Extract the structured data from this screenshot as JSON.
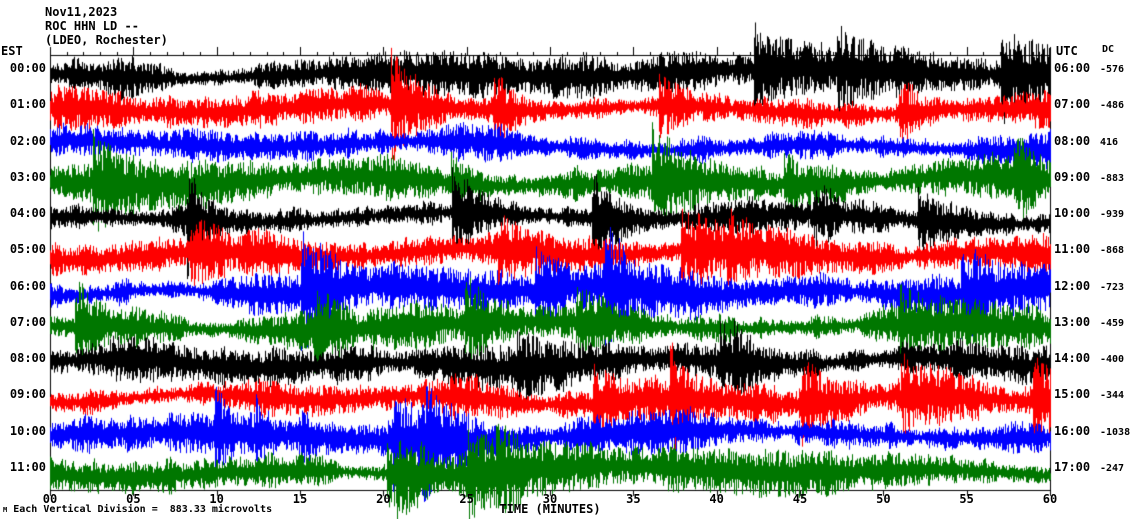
{
  "header": {
    "date": "Nov11,2023",
    "station": "ROC HHN LD --",
    "location": "(LDEO, Rochester)"
  },
  "axes": {
    "left_label": "EST",
    "right_label": "UTC",
    "right_label2": "DC",
    "xlabel": "TIME (MINUTES)",
    "x_ticks": [
      "00",
      "05",
      "10",
      "15",
      "20",
      "25",
      "30",
      "35",
      "40",
      "45",
      "50",
      "55",
      "60"
    ]
  },
  "footer": {
    "marker": "M",
    "text": "Each Vertical Division =  883.33 microvolts"
  },
  "colors": {
    "black": "#000000",
    "red": "#ff0000",
    "blue": "#0000ff",
    "green": "#007700",
    "axis": "#000000",
    "background": "#ffffff"
  },
  "chart_data": {
    "type": "line",
    "subtype": "helicorder-seismogram",
    "date": "Nov11,2023",
    "station": "ROC HHN LD --",
    "network_location": "(LDEO, Rochester)",
    "xlabel": "TIME (MINUTES)",
    "x_range": [
      0,
      60
    ],
    "x_tick_interval_minutes": 5,
    "minutes_per_row": 60,
    "vertical_division_microvolts": 883.33,
    "rows": [
      {
        "est": "00:00",
        "utc": "06:00",
        "dc": "-576",
        "color": "black"
      },
      {
        "est": "01:00",
        "utc": "07:00",
        "dc": "-486",
        "color": "red"
      },
      {
        "est": "02:00",
        "utc": "08:00",
        "dc": "416",
        "color": "blue"
      },
      {
        "est": "03:00",
        "utc": "09:00",
        "dc": "-883",
        "color": "green"
      },
      {
        "est": "04:00",
        "utc": "10:00",
        "dc": "-939",
        "color": "black"
      },
      {
        "est": "05:00",
        "utc": "11:00",
        "dc": "-868",
        "color": "red"
      },
      {
        "est": "06:00",
        "utc": "12:00",
        "dc": "-723",
        "color": "blue"
      },
      {
        "est": "07:00",
        "utc": "13:00",
        "dc": "-459",
        "color": "green"
      },
      {
        "est": "08:00",
        "utc": "14:00",
        "dc": "-400",
        "color": "black"
      },
      {
        "est": "09:00",
        "utc": "15:00",
        "dc": "-344",
        "color": "red"
      },
      {
        "est": "10:00",
        "utc": "16:00",
        "dc": "-1038",
        "color": "blue"
      },
      {
        "est": "11:00",
        "utc": "17:00",
        "dc": "-247",
        "color": "green"
      }
    ]
  }
}
